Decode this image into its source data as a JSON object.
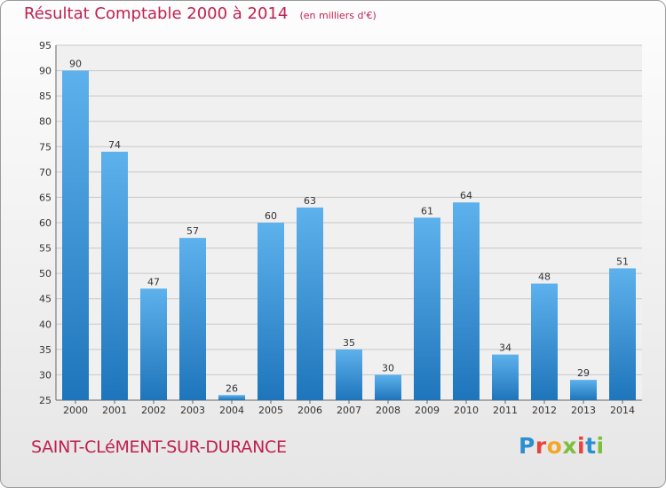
{
  "header": {
    "title": "Résultat Comptable 2000 à 2014",
    "unit": "(en milliers d'€)"
  },
  "footer": {
    "commune": "SAINT-CLéMENT-SUR-DURANCE",
    "brand": "Proxiti",
    "brand_colors": [
      "#2b8fd0",
      "#e9433e",
      "#f4a62a",
      "#7bbf3a",
      "#e9433e",
      "#2b8fd0",
      "#7bbf3a"
    ]
  },
  "colors": {
    "accent": "#c0204e",
    "bar_top": "#5db1ec",
    "bar_bottom": "#1f75bb",
    "grid": "#c8c8c8",
    "plot_bg": "#f0f0f0"
  },
  "chart_data": {
    "type": "bar",
    "categories": [
      "2000",
      "2001",
      "2002",
      "2003",
      "2004",
      "2005",
      "2006",
      "2007",
      "2008",
      "2009",
      "2010",
      "2011",
      "2012",
      "2013",
      "2014"
    ],
    "values": [
      90,
      74,
      47,
      57,
      26,
      60,
      63,
      35,
      30,
      61,
      64,
      34,
      48,
      29,
      51
    ],
    "title": "Résultat Comptable 2000 à 2014",
    "ylim": [
      25,
      95
    ],
    "yticks": [
      25,
      30,
      35,
      40,
      45,
      50,
      55,
      60,
      65,
      70,
      75,
      80,
      85,
      90,
      95
    ],
    "grid": true,
    "data_labels": true
  }
}
